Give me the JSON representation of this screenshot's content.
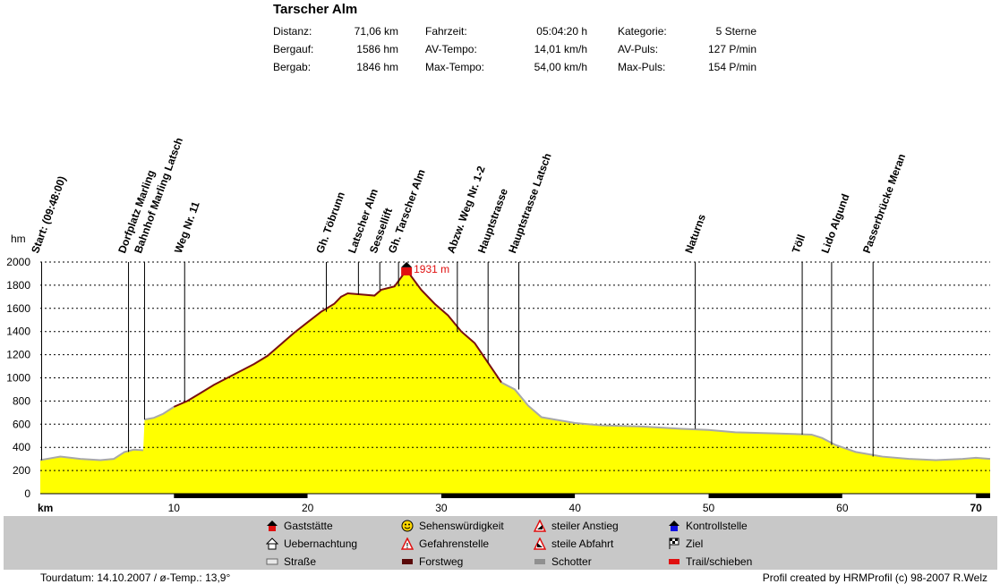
{
  "title": "Tarscher Alm",
  "stats": [
    {
      "label": "Distanz:",
      "value": "71,06 km"
    },
    {
      "label": "Bergauf:",
      "value": "1586 hm"
    },
    {
      "label": "Bergab:",
      "value": "1846 hm"
    },
    {
      "label": "Fahrzeit:",
      "value": "05:04:20 h"
    },
    {
      "label": "AV-Tempo:",
      "value": "14,01 km/h"
    },
    {
      "label": "Max-Tempo:",
      "value": "54,00 km/h"
    },
    {
      "label": "Kategorie:",
      "value": "5 Sterne"
    },
    {
      "label": "AV-Puls:",
      "value": "127 P/min"
    },
    {
      "label": "Max-Puls:",
      "value": "154 P/min"
    }
  ],
  "colors": {
    "fill": "#ffff00",
    "profile_dark": "#7a1010",
    "profile_road": "#a8a8a8",
    "peak": "#e01010",
    "forstweg": "#000000",
    "legend_bg": "#c8c8c8"
  },
  "legend": [
    {
      "label": "Gaststätte",
      "icon": "red-house-icon"
    },
    {
      "label": "Uebernachtung",
      "icon": "lodging-icon"
    },
    {
      "label": "Straße",
      "icon": "grey-road-swatch-icon"
    },
    {
      "label": "Sehenswürdigkeit",
      "icon": "smiley-icon"
    },
    {
      "label": "Gefahrenstelle",
      "icon": "warning-icon"
    },
    {
      "label": "Forstweg",
      "icon": "dark-red-swatch-icon"
    },
    {
      "label": "steiler Anstieg",
      "icon": "steep-up-icon"
    },
    {
      "label": "steile Abfahrt",
      "icon": "steep-down-icon"
    },
    {
      "label": "Schotter",
      "icon": "grey-swatch-icon"
    },
    {
      "label": "Kontrollstelle",
      "icon": "blue-house-icon"
    },
    {
      "label": "Ziel",
      "icon": "checkered-flag-icon"
    },
    {
      "label": "Trail/schieben",
      "icon": "red-swatch-icon"
    }
  ],
  "footer": {
    "left": "Tourdatum: 14.10.2007  /  ø-Temp.: 13,9°",
    "right": "Profil created by HRMProfil (c) 98-2007 R.Welz"
  },
  "chart_data": {
    "type": "area",
    "ylabel": "hm",
    "xlabel": "km",
    "xlim": [
      0,
      71.06
    ],
    "ylim": [
      0,
      2000
    ],
    "yticks": [
      0,
      200,
      400,
      600,
      800,
      1000,
      1200,
      1400,
      1600,
      1800,
      2000
    ],
    "xticks": [
      10,
      20,
      30,
      40,
      50,
      60,
      70
    ],
    "grid": true,
    "profile": [
      [
        0,
        290
      ],
      [
        1.5,
        320
      ],
      [
        3,
        300
      ],
      [
        4.5,
        290
      ],
      [
        5.5,
        300
      ],
      [
        6.3,
        360
      ],
      [
        7,
        380
      ],
      [
        7.7,
        375
      ],
      [
        7.8,
        640
      ],
      [
        8.5,
        655
      ],
      [
        9.2,
        690
      ],
      [
        10,
        750
      ],
      [
        11,
        800
      ],
      [
        12,
        870
      ],
      [
        13,
        940
      ],
      [
        14,
        1000
      ],
      [
        15,
        1060
      ],
      [
        16,
        1120
      ],
      [
        17,
        1190
      ],
      [
        18,
        1290
      ],
      [
        19,
        1390
      ],
      [
        20,
        1480
      ],
      [
        21,
        1570
      ],
      [
        22,
        1640
      ],
      [
        22.5,
        1700
      ],
      [
        23,
        1730
      ],
      [
        24,
        1720
      ],
      [
        25,
        1710
      ],
      [
        25.5,
        1760
      ],
      [
        26.5,
        1790
      ],
      [
        27.4,
        1931
      ],
      [
        28.5,
        1760
      ],
      [
        29.5,
        1640
      ],
      [
        30.5,
        1540
      ],
      [
        31.5,
        1400
      ],
      [
        32.5,
        1300
      ],
      [
        33.5,
        1130
      ],
      [
        34.5,
        960
      ],
      [
        35.5,
        900
      ],
      [
        36.5,
        760
      ],
      [
        37.5,
        660
      ],
      [
        38.5,
        640
      ],
      [
        40,
        610
      ],
      [
        42,
        590
      ],
      [
        45,
        580
      ],
      [
        48,
        560
      ],
      [
        50,
        550
      ],
      [
        52,
        530
      ],
      [
        55,
        520
      ],
      [
        57.7,
        510
      ],
      [
        58.5,
        480
      ],
      [
        59.5,
        420
      ],
      [
        61,
        360
      ],
      [
        63,
        320
      ],
      [
        65,
        300
      ],
      [
        67,
        290
      ],
      [
        69,
        300
      ],
      [
        70,
        310
      ],
      [
        71.06,
        300
      ]
    ],
    "peak": {
      "x": 27.4,
      "y": 1931,
      "label": "1931 m"
    },
    "waypoints": [
      {
        "x": 0.1,
        "label": "Start: (09:48:00)"
      },
      {
        "x": 6.6,
        "label": "Dorfplatz Marling"
      },
      {
        "x": 7.8,
        "label": "Bahnhof Marling   Latsch"
      },
      {
        "x": 10.8,
        "label": "Weg Nr. 11"
      },
      {
        "x": 21.4,
        "label": "Gh. Töbrunn"
      },
      {
        "x": 23.8,
        "label": "Latscher Alm"
      },
      {
        "x": 25.4,
        "label": "Sessellift"
      },
      {
        "x": 26.8,
        "label": "Gh. Tarscher Alm"
      },
      {
        "x": 31.2,
        "label": "Abzw. Weg Nr. 1-2"
      },
      {
        "x": 33.5,
        "label": "Hauptstrasse"
      },
      {
        "x": 35.8,
        "label": "Hauptstrasse Latsch"
      },
      {
        "x": 49.0,
        "label": "Naturns"
      },
      {
        "x": 57.0,
        "label": "Töll"
      },
      {
        "x": 59.2,
        "label": "Lido Algund"
      },
      {
        "x": 62.3,
        "label": "Passerbrücke Meran"
      }
    ],
    "surface_bar": [
      {
        "from": 0,
        "to": 10,
        "type": "road"
      },
      {
        "from": 10,
        "to": 20,
        "type": "forstweg"
      },
      {
        "from": 20,
        "to": 30,
        "type": "road"
      },
      {
        "from": 30,
        "to": 40,
        "type": "forstweg"
      },
      {
        "from": 40,
        "to": 50,
        "type": "road"
      },
      {
        "from": 50,
        "to": 60,
        "type": "forstweg"
      },
      {
        "from": 60,
        "to": 70,
        "type": "road"
      },
      {
        "from": 70,
        "to": 71.06,
        "type": "forstweg"
      }
    ]
  }
}
